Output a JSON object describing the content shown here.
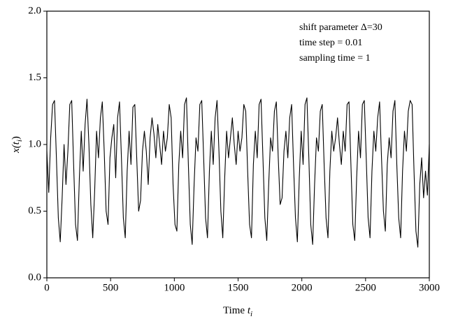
{
  "chart_data": {
    "type": "line",
    "annotations": [
      "shift parameter Δ=30",
      "time step = 0.01",
      "sampling time = 1"
    ],
    "xlabel": "Time",
    "xlabel_var": "t",
    "xlabel_sub": "i",
    "ylabel_var": "x(t",
    "ylabel_sub": "i",
    "ylabel_close": ")",
    "xlim": [
      0,
      3000
    ],
    "ylim": [
      0.0,
      2.0
    ],
    "xticks": [
      0,
      500,
      1000,
      1500,
      2000,
      2500,
      3000
    ],
    "yticks": [
      {
        "value": 0,
        "label": "0.0"
      },
      {
        "value": 0.5,
        "label": "0.5"
      },
      {
        "value": 1,
        "label": "1.0"
      },
      {
        "value": 1.5,
        "label": "1.5"
      },
      {
        "value": 2,
        "label": "2.0"
      }
    ],
    "color": "#000000",
    "x": [
      0,
      15,
      30,
      45,
      60,
      75,
      90,
      105,
      120,
      135,
      150,
      165,
      180,
      195,
      210,
      225,
      240,
      255,
      270,
      285,
      300,
      315,
      330,
      345,
      360,
      375,
      390,
      405,
      420,
      435,
      450,
      465,
      480,
      495,
      510,
      525,
      540,
      555,
      570,
      585,
      600,
      615,
      630,
      645,
      660,
      675,
      690,
      705,
      720,
      735,
      750,
      765,
      780,
      795,
      810,
      825,
      840,
      855,
      870,
      885,
      900,
      915,
      930,
      945,
      960,
      975,
      990,
      1005,
      1020,
      1035,
      1050,
      1065,
      1080,
      1095,
      1110,
      1125,
      1140,
      1155,
      1170,
      1185,
      1200,
      1215,
      1230,
      1245,
      1260,
      1275,
      1290,
      1305,
      1320,
      1335,
      1350,
      1365,
      1380,
      1395,
      1410,
      1425,
      1440,
      1455,
      1470,
      1485,
      1500,
      1515,
      1530,
      1545,
      1560,
      1575,
      1590,
      1605,
      1620,
      1635,
      1650,
      1665,
      1680,
      1695,
      1710,
      1725,
      1740,
      1755,
      1770,
      1785,
      1800,
      1815,
      1830,
      1845,
      1860,
      1875,
      1890,
      1905,
      1920,
      1935,
      1950,
      1965,
      1980,
      1995,
      2010,
      2025,
      2040,
      2055,
      2070,
      2085,
      2100,
      2115,
      2130,
      2145,
      2160,
      2175,
      2190,
      2205,
      2220,
      2235,
      2250,
      2265,
      2280,
      2295,
      2310,
      2325,
      2340,
      2355,
      2370,
      2385,
      2400,
      2415,
      2430,
      2445,
      2460,
      2475,
      2490,
      2505,
      2520,
      2535,
      2550,
      2565,
      2580,
      2595,
      2610,
      2625,
      2640,
      2655,
      2670,
      2685,
      2700,
      2715,
      2730,
      2745,
      2760,
      2775,
      2790,
      2805,
      2820,
      2835,
      2850,
      2865,
      2880,
      2895,
      2910,
      2925,
      2940,
      2955,
      2970,
      2985,
      3000
    ],
    "values": [
      0.95,
      0.64,
      1.05,
      1.3,
      1.33,
      0.9,
      0.45,
      0.27,
      0.6,
      1.0,
      0.7,
      0.95,
      1.3,
      1.33,
      0.85,
      0.4,
      0.28,
      0.75,
      1.1,
      0.8,
      1.15,
      1.34,
      1.0,
      0.55,
      0.3,
      0.65,
      1.1,
      0.9,
      1.2,
      1.32,
      0.95,
      0.5,
      0.4,
      0.9,
      1.05,
      1.15,
      0.75,
      1.2,
      1.32,
      0.9,
      0.45,
      0.3,
      0.8,
      1.1,
      0.85,
      1.28,
      1.3,
      0.9,
      0.5,
      0.58,
      0.95,
      1.1,
      0.95,
      0.7,
      1.05,
      1.2,
      1.08,
      0.9,
      1.15,
      1.0,
      0.85,
      1.1,
      0.95,
      1.05,
      1.3,
      1.2,
      0.7,
      0.4,
      0.35,
      0.85,
      1.1,
      0.9,
      1.3,
      1.35,
      0.85,
      0.4,
      0.25,
      0.7,
      1.05,
      0.95,
      1.3,
      1.33,
      0.9,
      0.45,
      0.3,
      0.8,
      1.1,
      0.85,
      1.2,
      1.33,
      0.95,
      0.5,
      0.3,
      0.75,
      1.1,
      0.9,
      1.05,
      1.2,
      1.0,
      0.85,
      1.1,
      0.95,
      1.05,
      1.3,
      1.25,
      0.8,
      0.4,
      0.3,
      0.85,
      1.1,
      0.9,
      1.3,
      1.34,
      0.9,
      0.45,
      0.28,
      0.7,
      1.05,
      0.95,
      1.25,
      1.32,
      0.9,
      0.55,
      0.6,
      0.95,
      1.1,
      0.9,
      1.2,
      1.3,
      0.85,
      0.45,
      0.27,
      0.75,
      1.1,
      0.85,
      1.3,
      1.35,
      0.9,
      0.4,
      0.25,
      0.7,
      1.05,
      0.95,
      1.25,
      1.3,
      0.85,
      0.45,
      0.3,
      0.8,
      1.1,
      0.95,
      1.05,
      1.2,
      1.0,
      0.85,
      1.1,
      0.95,
      1.3,
      1.32,
      0.85,
      0.4,
      0.28,
      0.75,
      1.1,
      0.9,
      1.3,
      1.33,
      0.9,
      0.45,
      0.3,
      0.8,
      1.1,
      0.95,
      1.2,
      1.32,
      0.9,
      0.5,
      0.35,
      0.85,
      1.05,
      0.9,
      1.25,
      1.33,
      0.85,
      0.45,
      0.3,
      0.8,
      1.1,
      0.95,
      1.25,
      1.33,
      1.3,
      0.8,
      0.35,
      0.23,
      0.7,
      0.9,
      0.6,
      0.8,
      0.62,
      1.0
    ]
  }
}
